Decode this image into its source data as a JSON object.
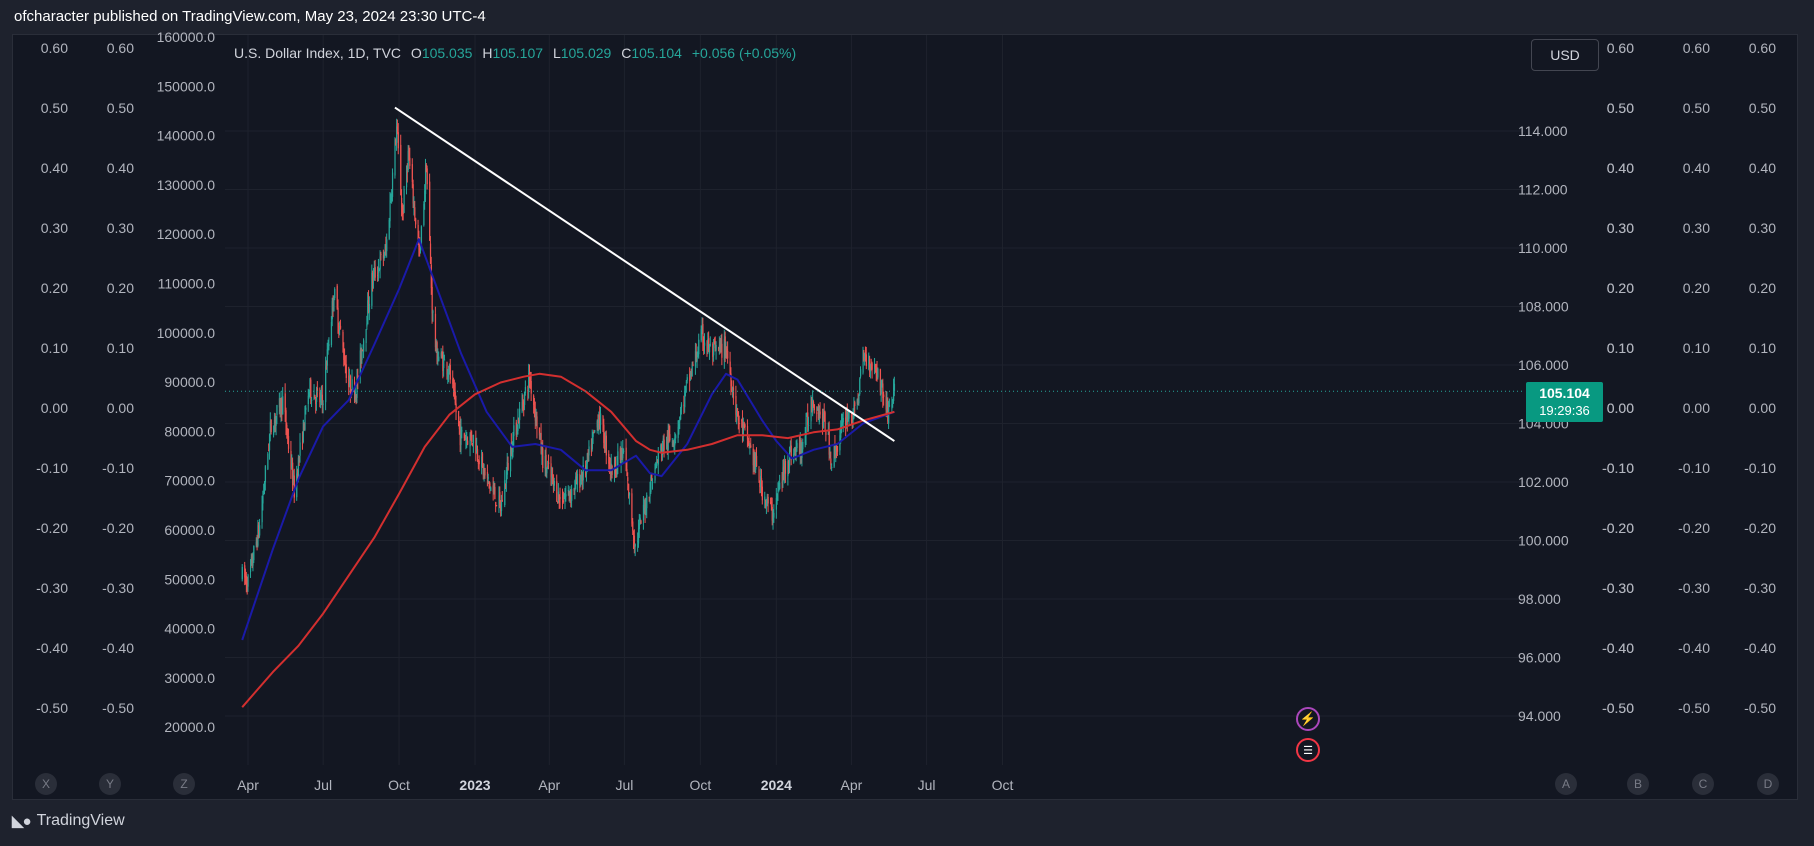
{
  "publish_line": "ofcharacter published on TradingView.com, May 23, 2024 23:30 UTC-4",
  "legend": {
    "symbol": "U.S. Dollar Index, 1D, TVC",
    "o_label": "O",
    "o_value": "105.035",
    "h_label": "H",
    "h_value": "105.107",
    "l_label": "L",
    "l_value": "105.029",
    "c_label": "C",
    "c_value": "105.104",
    "change": "+0.056 (+0.05%)"
  },
  "currency_button": "USD",
  "last_price": {
    "price": "105.104",
    "countdown": "19:29:36"
  },
  "footer_brand": "TradingView",
  "colors": {
    "up": "#26a69a",
    "down": "#ef5350",
    "ma_fast": "#1a1aa8",
    "ma_slow": "#d32f2f",
    "trendline": "#ffffff",
    "background": "#131722"
  },
  "icons": {
    "event_lightning": "lightning-icon",
    "event_flag": "us-flag-icon"
  },
  "chart_data": {
    "type": "candlestick",
    "title": "U.S. Dollar Index, 1D, TVC",
    "x_axis_labels": [
      "Apr",
      "Jul",
      "Oct",
      "2023",
      "Apr",
      "Jul",
      "Oct",
      "2024",
      "Apr",
      "Jul",
      "Oct"
    ],
    "x_axis_bold": [
      "2023",
      "2024"
    ],
    "price_axis": {
      "ticks": [
        "94.000",
        "96.000",
        "98.000",
        "100.000",
        "102.000",
        "104.000",
        "106.000",
        "108.000",
        "110.000",
        "112.000",
        "114.000"
      ],
      "ylim": [
        93.4,
        116.2
      ]
    },
    "left_axis_1": {
      "ticks": [
        "0.60",
        "0.50",
        "0.40",
        "0.30",
        "0.20",
        "0.10",
        "0.00",
        "-0.10",
        "-0.20",
        "-0.30",
        "-0.40",
        "-0.50"
      ]
    },
    "left_axis_2": {
      "ticks": [
        "0.60",
        "0.50",
        "0.40",
        "0.30",
        "0.20",
        "0.10",
        "0.00",
        "-0.10",
        "-0.20",
        "-0.30",
        "-0.40",
        "-0.50"
      ]
    },
    "left_axis_3": {
      "ticks": [
        "160000.0",
        "150000.0",
        "140000.0",
        "130000.0",
        "120000.0",
        "110000.0",
        "100000.0",
        "90000.0",
        "80000.0",
        "70000.0",
        "60000.0",
        "50000.0",
        "40000.0",
        "30000.0",
        "20000.0"
      ]
    },
    "right_axis_2": {
      "ticks": [
        "0.60",
        "0.50",
        "0.40",
        "0.30",
        "0.20",
        "0.10",
        "0.00",
        "-0.10",
        "-0.20",
        "-0.30",
        "-0.40",
        "-0.50"
      ]
    },
    "right_axis_3": {
      "ticks": [
        "0.60",
        "0.50",
        "0.40",
        "0.30",
        "0.20",
        "0.10",
        "0.00",
        "-0.10",
        "-0.20",
        "-0.30",
        "-0.40",
        "-0.50"
      ]
    },
    "right_axis_4": {
      "ticks": [
        "0.60",
        "0.50",
        "0.40",
        "0.30",
        "0.20",
        "0.10",
        "0.00",
        "-0.10",
        "-0.20",
        "-0.30",
        "-0.40",
        "-0.50"
      ]
    },
    "bottom_left_badges": [
      "X",
      "Y",
      "Z"
    ],
    "bottom_right_badges": [
      "A",
      "B",
      "C",
      "D"
    ],
    "price_path": [
      [
        "2022-03-25",
        98.8
      ],
      [
        "2022-04-01",
        98.6
      ],
      [
        "2022-04-15",
        100.5
      ],
      [
        "2022-04-28",
        103.8
      ],
      [
        "2022-05-13",
        104.8
      ],
      [
        "2022-05-27",
        101.7
      ],
      [
        "2022-06-14",
        105.2
      ],
      [
        "2022-06-30",
        104.7
      ],
      [
        "2022-07-14",
        108.5
      ],
      [
        "2022-08-01",
        105.3
      ],
      [
        "2022-08-10",
        105.2
      ],
      [
        "2022-08-29",
        108.9
      ],
      [
        "2022-09-15",
        109.9
      ],
      [
        "2022-09-28",
        114.1
      ],
      [
        "2022-10-05",
        111.1
      ],
      [
        "2022-10-12",
        113.2
      ],
      [
        "2022-10-26",
        109.7
      ],
      [
        "2022-11-03",
        112.9
      ],
      [
        "2022-11-10",
        108.0
      ],
      [
        "2022-11-15",
        106.4
      ],
      [
        "2022-11-30",
        105.9
      ],
      [
        "2022-12-14",
        103.6
      ],
      [
        "2022-12-30",
        103.5
      ],
      [
        "2023-01-13",
        102.2
      ],
      [
        "2023-02-01",
        101.1
      ],
      [
        "2023-02-14",
        103.3
      ],
      [
        "2023-03-08",
        105.6
      ],
      [
        "2023-03-24",
        102.8
      ],
      [
        "2023-04-14",
        101.4
      ],
      [
        "2023-04-28",
        101.7
      ],
      [
        "2023-05-15",
        102.4
      ],
      [
        "2023-05-31",
        104.3
      ],
      [
        "2023-06-15",
        102.4
      ],
      [
        "2023-06-30",
        103.0
      ],
      [
        "2023-07-14",
        99.8
      ],
      [
        "2023-07-31",
        101.8
      ],
      [
        "2023-08-15",
        103.2
      ],
      [
        "2023-08-31",
        103.6
      ],
      [
        "2023-09-15",
        105.3
      ],
      [
        "2023-10-03",
        107.0
      ],
      [
        "2023-10-15",
        106.4
      ],
      [
        "2023-11-01",
        106.6
      ],
      [
        "2023-11-15",
        104.2
      ],
      [
        "2023-11-30",
        103.2
      ],
      [
        "2023-12-15",
        101.7
      ],
      [
        "2023-12-27",
        100.9
      ],
      [
        "2024-01-15",
        102.9
      ],
      [
        "2024-02-01",
        103.2
      ],
      [
        "2024-02-14",
        104.9
      ],
      [
        "2024-03-01",
        103.9
      ],
      [
        "2024-03-08",
        102.7
      ],
      [
        "2024-03-26",
        104.3
      ],
      [
        "2024-04-05",
        104.3
      ],
      [
        "2024-04-16",
        106.3
      ],
      [
        "2024-05-01",
        105.9
      ],
      [
        "2024-05-15",
        104.4
      ],
      [
        "2024-05-23",
        105.1
      ]
    ],
    "ma_fast_path": [
      [
        "2022-03-25",
        96.6
      ],
      [
        "2022-05-01",
        99.7
      ],
      [
        "2022-06-01",
        102.1
      ],
      [
        "2022-07-01",
        103.9
      ],
      [
        "2022-08-01",
        104.8
      ],
      [
        "2022-09-01",
        106.7
      ],
      [
        "2022-10-01",
        108.6
      ],
      [
        "2022-10-25",
        110.3
      ],
      [
        "2022-11-15",
        108.7
      ],
      [
        "2022-12-15",
        106.4
      ],
      [
        "2023-01-15",
        104.4
      ],
      [
        "2023-02-15",
        103.2
      ],
      [
        "2023-03-15",
        103.3
      ],
      [
        "2023-04-15",
        103.1
      ],
      [
        "2023-05-15",
        102.4
      ],
      [
        "2023-06-15",
        102.4
      ],
      [
        "2023-07-15",
        102.9
      ],
      [
        "2023-08-01",
        102.3
      ],
      [
        "2023-08-15",
        102.2
      ],
      [
        "2023-09-15",
        103.3
      ],
      [
        "2023-10-15",
        105.0
      ],
      [
        "2023-11-01",
        105.7
      ],
      [
        "2023-11-15",
        105.5
      ],
      [
        "2023-12-15",
        104.1
      ],
      [
        "2024-01-01",
        103.4
      ],
      [
        "2024-01-20",
        102.8
      ],
      [
        "2024-02-15",
        103.1
      ],
      [
        "2024-03-15",
        103.3
      ],
      [
        "2024-04-15",
        104.0
      ],
      [
        "2024-05-23",
        104.4
      ]
    ],
    "ma_slow_path": [
      [
        "2022-03-25",
        94.3
      ],
      [
        "2022-05-01",
        95.5
      ],
      [
        "2022-06-01",
        96.4
      ],
      [
        "2022-07-01",
        97.5
      ],
      [
        "2022-08-01",
        98.8
      ],
      [
        "2022-09-01",
        100.1
      ],
      [
        "2022-10-01",
        101.6
      ],
      [
        "2022-11-01",
        103.2
      ],
      [
        "2022-12-01",
        104.3
      ],
      [
        "2023-01-01",
        105.0
      ],
      [
        "2023-02-01",
        105.4
      ],
      [
        "2023-03-01",
        105.6
      ],
      [
        "2023-03-20",
        105.7
      ],
      [
        "2023-04-15",
        105.6
      ],
      [
        "2023-05-15",
        105.1
      ],
      [
        "2023-06-15",
        104.4
      ],
      [
        "2023-07-15",
        103.4
      ],
      [
        "2023-08-01",
        103.1
      ],
      [
        "2023-08-15",
        103.0
      ],
      [
        "2023-09-15",
        103.1
      ],
      [
        "2023-10-15",
        103.3
      ],
      [
        "2023-11-15",
        103.6
      ],
      [
        "2023-12-15",
        103.6
      ],
      [
        "2024-01-15",
        103.5
      ],
      [
        "2024-02-15",
        103.7
      ],
      [
        "2024-03-15",
        103.8
      ],
      [
        "2024-04-15",
        104.1
      ],
      [
        "2024-05-23",
        104.4
      ]
    ],
    "trendline": {
      "start": [
        "2022-09-26",
        114.8
      ],
      "end": [
        "2024-05-23",
        103.4
      ]
    },
    "last_price_line": 105.104,
    "grid": true
  }
}
